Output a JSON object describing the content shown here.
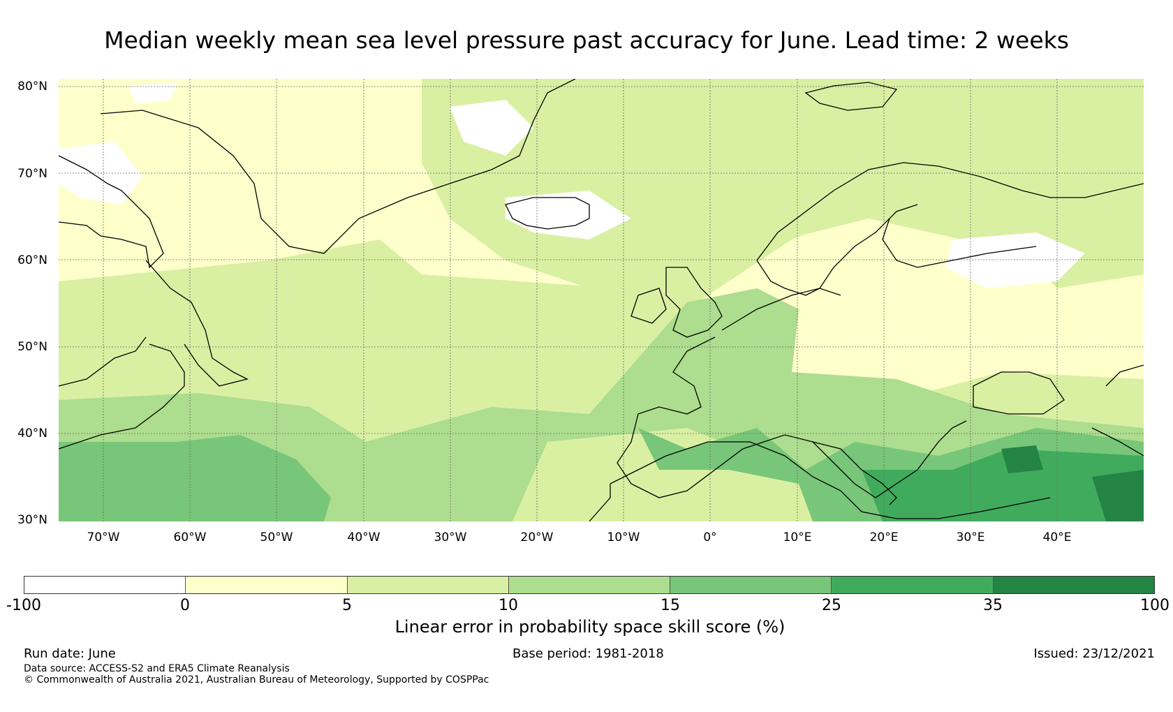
{
  "title": "Median weekly mean sea level pressure past accuracy for June. Lead time: 2 weeks",
  "lat_labels": [
    "80°N",
    "70°N",
    "60°N",
    "50°N",
    "40°N",
    "30°N"
  ],
  "lon_labels": [
    "70°W",
    "60°W",
    "50°W",
    "40°W",
    "30°W",
    "20°W",
    "10°W",
    "0°",
    "10°E",
    "20°E",
    "30°E",
    "40°E"
  ],
  "colorbar": {
    "ticks": [
      "-100",
      "0",
      "5",
      "10",
      "15",
      "25",
      "35",
      "100"
    ],
    "colors": [
      "#ffffff",
      "#ffffcc",
      "#d9f0a3",
      "#addd8e",
      "#78c679",
      "#41ab5d",
      "#238443"
    ],
    "label": "Linear error in probability space skill score (%)"
  },
  "footer": {
    "run_date": "Run date: June",
    "base_period": "Base period: 1981-2018",
    "issued": "Issued: 23/12/2021",
    "data_source": "Data source: ACCESS-S2 and ERA5 Climate Reanalysis",
    "copyright": "© Commonwealth of Australia 2021, Australian Bureau of Meteorology, Supported by COSPPac"
  }
}
